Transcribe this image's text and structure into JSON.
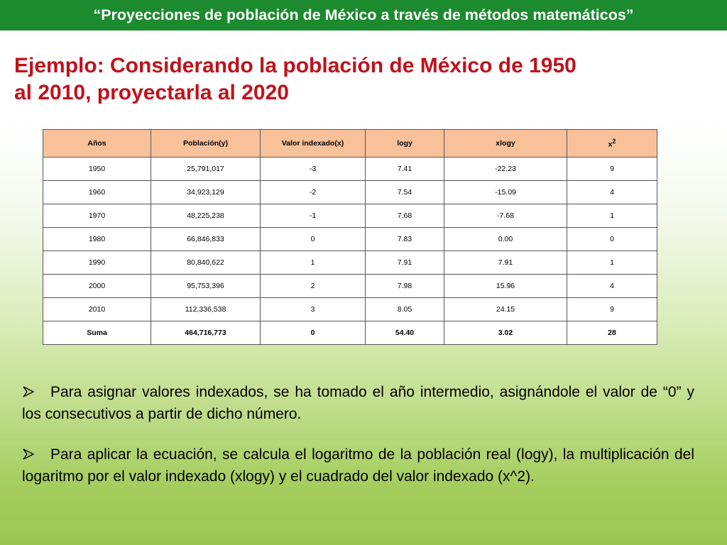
{
  "header": {
    "title": "“Proyecciones de población de México a través de métodos matemáticos”"
  },
  "heading": {
    "line1": "Ejemplo: Considerando la población de México de 1950",
    "line2": "al 2010, proyectarla al 2020"
  },
  "table": {
    "headers": [
      "Años",
      "Población(y)",
      "Valor indexado(x)",
      "logy",
      "xlogy",
      "x",
      "2"
    ],
    "rows": [
      [
        "1950",
        "25,791,017",
        "-3",
        "7.41",
        "-22.23",
        "9"
      ],
      [
        "1960",
        "34,923,129",
        "-2",
        "7.54",
        "-15.09",
        "4"
      ],
      [
        "1970",
        "48,225,238",
        "-1",
        "7.68",
        "-7.68",
        "1"
      ],
      [
        "1980",
        "66,846,833",
        "0",
        "7.83",
        "0.00",
        "0"
      ],
      [
        "1990",
        "80,840,622",
        "1",
        "7.91",
        "7.91",
        "1"
      ],
      [
        "2000",
        "95,753,396",
        "2",
        "7.98",
        "15.96",
        "4"
      ],
      [
        "2010",
        "112,336,538",
        "3",
        "8.05",
        "24.15",
        "9"
      ]
    ],
    "sum": [
      "Suma",
      "464,716,773",
      "0",
      "54.40",
      "3.02",
      "28"
    ]
  },
  "bullets": [
    "Para asignar valores indexados, se ha tomado el año intermedio, asignándole el valor de “0” y los consecutivos a partir de dicho número.",
    "Para aplicar la ecuación, se calcula el logaritmo de la población real (logy), la multiplicación del logaritmo por el valor indexado (xlogy) y el cuadrado del valor indexado (x^2)."
  ],
  "colors": {
    "header_bg": "#1c8a2e",
    "heading_text": "#c0121c",
    "table_header_bg": "#f9c19a"
  }
}
